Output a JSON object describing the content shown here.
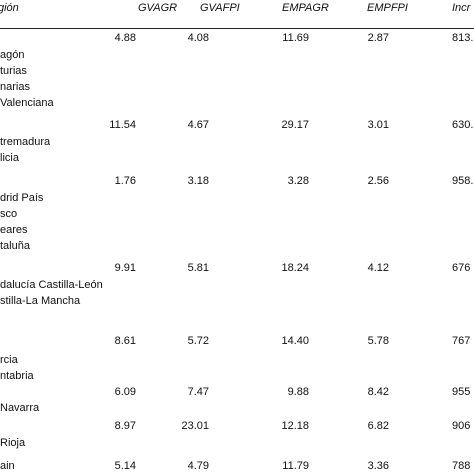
{
  "table": {
    "header": [
      "gión",
      "GVAGR",
      "GVAFPI",
      "EMPAGR",
      "EMPFPI",
      "Incr"
    ],
    "rows": [
      {
        "region": [
          "agón",
          "turias",
          "narias",
          "Valenciana"
        ],
        "values": [
          "4.88",
          "4.08",
          "11.69",
          "2.87",
          "813."
        ]
      },
      {
        "region": [
          "tremadura",
          "licia"
        ],
        "values": [
          "11.54",
          "4.67",
          "29.17",
          "3.01",
          "630."
        ]
      },
      {
        "region": [
          "drid País",
          "sco",
          "eares",
          "taluña"
        ],
        "values": [
          "1.76",
          "3.18",
          "3.28",
          "2.56",
          "958."
        ]
      },
      {
        "region": [
          "dalucía Castilla-León",
          "stilla-La Mancha"
        ],
        "values": [
          "9.91",
          "5.81",
          "18.24",
          "4.12",
          "676"
        ]
      },
      {
        "region": [
          "rcia",
          "ntabria"
        ],
        "values": [
          "8.61",
          "5.72",
          "14.40",
          "5.78",
          "767"
        ]
      },
      {
        "region": [
          "Navarra"
        ],
        "values": [
          "6.09",
          "7.47",
          "9.88",
          "8.42",
          "955"
        ]
      },
      {
        "region": [
          "Rioja"
        ],
        "values": [
          "8.97",
          "23.01",
          "12.18",
          "6.82",
          "906"
        ]
      },
      {
        "region": [
          "ain"
        ],
        "values": [
          "5.14",
          "4.79",
          "11.79",
          "3.36",
          "788"
        ]
      }
    ]
  }
}
